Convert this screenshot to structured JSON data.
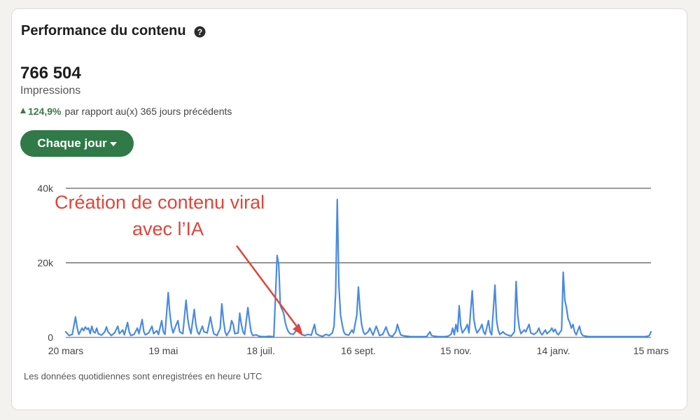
{
  "card": {
    "title": "Performance du contenu",
    "help_icon": "question-circle-icon",
    "metric_value": "766 504",
    "metric_label": "Impressions",
    "delta": {
      "direction": "up",
      "value": "124,9%",
      "text": "par rapport au(x) 365 jours précédents",
      "color": "#3c7a4c"
    },
    "period_button": {
      "label": "Chaque jour",
      "icon": "caret-down-icon",
      "color": "#2f7a47"
    },
    "footnote": "Les données quotidiennes sont enregistrées en heure UTC"
  },
  "annotation": {
    "line1": "Création de contenu viral",
    "line2": "avec l’IA",
    "color": "#e0453a"
  },
  "chart_data": {
    "type": "line",
    "title": "",
    "xlabel": "",
    "ylabel": "",
    "ylim": [
      0,
      40000
    ],
    "y_ticks": [
      {
        "value": 0,
        "label": "0"
      },
      {
        "value": 20000,
        "label": "20k"
      },
      {
        "value": 40000,
        "label": "40k"
      }
    ],
    "x_ticks": [
      {
        "day": 0,
        "label": "20 mars"
      },
      {
        "day": 60,
        "label": "19 mai"
      },
      {
        "day": 120,
        "label": "18 juil."
      },
      {
        "day": 180,
        "label": "16 sept."
      },
      {
        "day": 240,
        "label": "15 nov."
      },
      {
        "day": 300,
        "label": "14 janv."
      },
      {
        "day": 360,
        "label": "15 mars"
      }
    ],
    "grid": true,
    "line_color": "#4a8be0",
    "series": [
      {
        "name": "",
        "points": [
          [
            0,
            1500
          ],
          [
            2,
            500
          ],
          [
            4,
            800
          ],
          [
            6,
            5500
          ],
          [
            7,
            2500
          ],
          [
            8,
            800
          ],
          [
            10,
            2500
          ],
          [
            11,
            1800
          ],
          [
            12,
            2800
          ],
          [
            13,
            2200
          ],
          [
            14,
            2500
          ],
          [
            15,
            1000
          ],
          [
            16,
            3000
          ],
          [
            17,
            1500
          ],
          [
            18,
            1200
          ],
          [
            19,
            2500
          ],
          [
            20,
            1000
          ],
          [
            22,
            600
          ],
          [
            24,
            1500
          ],
          [
            25,
            2800
          ],
          [
            26,
            1500
          ],
          [
            28,
            500
          ],
          [
            30,
            1200
          ],
          [
            32,
            3000
          ],
          [
            33,
            1000
          ],
          [
            35,
            2000
          ],
          [
            36,
            700
          ],
          [
            38,
            4000
          ],
          [
            39,
            1500
          ],
          [
            40,
            500
          ],
          [
            42,
            800
          ],
          [
            44,
            2500
          ],
          [
            45,
            1000
          ],
          [
            47,
            4800
          ],
          [
            48,
            1500
          ],
          [
            49,
            700
          ],
          [
            51,
            1200
          ],
          [
            53,
            3000
          ],
          [
            54,
            1000
          ],
          [
            56,
            1800
          ],
          [
            57,
            800
          ],
          [
            59,
            4500
          ],
          [
            60,
            1500
          ],
          [
            61,
            800
          ],
          [
            63,
            12000
          ],
          [
            64,
            6500
          ],
          [
            65,
            3000
          ],
          [
            66,
            1200
          ],
          [
            68,
            3500
          ],
          [
            69,
            4500
          ],
          [
            70,
            1500
          ],
          [
            72,
            1000
          ],
          [
            74,
            10000
          ],
          [
            75,
            5000
          ],
          [
            76,
            2500
          ],
          [
            77,
            1000
          ],
          [
            79,
            7500
          ],
          [
            80,
            3500
          ],
          [
            81,
            1500
          ],
          [
            82,
            800
          ],
          [
            84,
            3000
          ],
          [
            85,
            1500
          ],
          [
            87,
            1200
          ],
          [
            89,
            5500
          ],
          [
            90,
            3000
          ],
          [
            91,
            1000
          ],
          [
            93,
            500
          ],
          [
            95,
            2500
          ],
          [
            96,
            9000
          ],
          [
            97,
            4500
          ],
          [
            98,
            1500
          ],
          [
            99,
            500
          ],
          [
            101,
            2000
          ],
          [
            102,
            4500
          ],
          [
            103,
            3500
          ],
          [
            104,
            1000
          ],
          [
            106,
            1200
          ],
          [
            107,
            6500
          ],
          [
            108,
            3500
          ],
          [
            109,
            1500
          ],
          [
            110,
            800
          ],
          [
            112,
            8000
          ],
          [
            113,
            4500
          ],
          [
            114,
            1500
          ],
          [
            115,
            500
          ],
          [
            117,
            700
          ],
          [
            119,
            300
          ],
          [
            121,
            200
          ],
          [
            123,
            200
          ],
          [
            125,
            300
          ],
          [
            127,
            200
          ],
          [
            128,
            300
          ],
          [
            130,
            22000
          ],
          [
            131,
            19500
          ],
          [
            132,
            8500
          ],
          [
            133,
            7500
          ],
          [
            134,
            6500
          ],
          [
            135,
            4000
          ],
          [
            136,
            2500
          ],
          [
            137,
            1500
          ],
          [
            138,
            1000
          ],
          [
            140,
            800
          ],
          [
            142,
            2000
          ],
          [
            143,
            3500
          ],
          [
            144,
            2000
          ],
          [
            145,
            800
          ],
          [
            147,
            500
          ],
          [
            149,
            800
          ],
          [
            151,
            600
          ],
          [
            153,
            3500
          ],
          [
            154,
            1000
          ],
          [
            156,
            500
          ],
          [
            158,
            300
          ],
          [
            160,
            800
          ],
          [
            162,
            500
          ],
          [
            164,
            1200
          ],
          [
            165,
            3000
          ],
          [
            166,
            12000
          ],
          [
            167,
            37000
          ],
          [
            168,
            14000
          ],
          [
            169,
            6000
          ],
          [
            170,
            3500
          ],
          [
            171,
            1500
          ],
          [
            172,
            800
          ],
          [
            174,
            600
          ],
          [
            176,
            2000
          ],
          [
            177,
            1200
          ],
          [
            179,
            6000
          ],
          [
            180,
            13500
          ],
          [
            181,
            7500
          ],
          [
            182,
            3500
          ],
          [
            183,
            1500
          ],
          [
            184,
            800
          ],
          [
            186,
            1500
          ],
          [
            187,
            2500
          ],
          [
            188,
            1500
          ],
          [
            189,
            600
          ],
          [
            191,
            3000
          ],
          [
            192,
            1800
          ],
          [
            193,
            500
          ],
          [
            195,
            800
          ],
          [
            197,
            2800
          ],
          [
            198,
            1500
          ],
          [
            199,
            500
          ],
          [
            201,
            300
          ],
          [
            203,
            1500
          ],
          [
            204,
            3500
          ],
          [
            205,
            2000
          ],
          [
            206,
            700
          ],
          [
            208,
            400
          ],
          [
            210,
            300
          ],
          [
            212,
            200
          ],
          [
            214,
            200
          ],
          [
            216,
            200
          ],
          [
            218,
            200
          ],
          [
            220,
            200
          ],
          [
            222,
            200
          ],
          [
            224,
            1500
          ],
          [
            225,
            500
          ],
          [
            227,
            300
          ],
          [
            229,
            200
          ],
          [
            231,
            200
          ],
          [
            233,
            200
          ],
          [
            235,
            300
          ],
          [
            237,
            800
          ],
          [
            238,
            2500
          ],
          [
            239,
            700
          ],
          [
            240,
            3500
          ],
          [
            241,
            1500
          ],
          [
            242,
            8500
          ],
          [
            243,
            3000
          ],
          [
            244,
            1200
          ],
          [
            246,
            2500
          ],
          [
            247,
            3500
          ],
          [
            248,
            1200
          ],
          [
            250,
            12500
          ],
          [
            251,
            5000
          ],
          [
            252,
            2500
          ],
          [
            253,
            1200
          ],
          [
            255,
            2500
          ],
          [
            256,
            3500
          ],
          [
            257,
            1500
          ],
          [
            258,
            800
          ],
          [
            260,
            4500
          ],
          [
            261,
            1500
          ],
          [
            262,
            700
          ],
          [
            264,
            14000
          ],
          [
            265,
            4500
          ],
          [
            266,
            2000
          ],
          [
            267,
            800
          ],
          [
            269,
            1500
          ],
          [
            270,
            1000
          ],
          [
            272,
            600
          ],
          [
            274,
            400
          ],
          [
            276,
            1500
          ],
          [
            277,
            15000
          ],
          [
            278,
            6000
          ],
          [
            279,
            2500
          ],
          [
            280,
            1000
          ],
          [
            282,
            2000
          ],
          [
            283,
            1500
          ],
          [
            285,
            3500
          ],
          [
            286,
            1200
          ],
          [
            288,
            800
          ],
          [
            290,
            1500
          ],
          [
            291,
            2500
          ],
          [
            292,
            1200
          ],
          [
            293,
            700
          ],
          [
            295,
            2000
          ],
          [
            296,
            1000
          ],
          [
            298,
            1800
          ],
          [
            299,
            2500
          ],
          [
            300,
            1500
          ],
          [
            301,
            2200
          ],
          [
            302,
            1200
          ],
          [
            303,
            700
          ],
          [
            305,
            2000
          ],
          [
            306,
            17500
          ],
          [
            307,
            10000
          ],
          [
            308,
            8000
          ],
          [
            309,
            5000
          ],
          [
            310,
            4000
          ],
          [
            311,
            2500
          ],
          [
            312,
            3500
          ],
          [
            313,
            1500
          ],
          [
            314,
            700
          ],
          [
            316,
            3000
          ],
          [
            317,
            1200
          ],
          [
            318,
            500
          ],
          [
            320,
            300
          ],
          [
            322,
            200
          ],
          [
            324,
            200
          ],
          [
            326,
            200
          ],
          [
            328,
            200
          ],
          [
            330,
            200
          ],
          [
            332,
            200
          ],
          [
            334,
            200
          ],
          [
            336,
            200
          ],
          [
            338,
            200
          ],
          [
            340,
            200
          ],
          [
            342,
            200
          ],
          [
            344,
            200
          ],
          [
            346,
            200
          ],
          [
            348,
            200
          ],
          [
            350,
            200
          ],
          [
            352,
            200
          ],
          [
            354,
            200
          ],
          [
            356,
            200
          ],
          [
            358,
            300
          ],
          [
            359,
            500
          ],
          [
            360,
            1500
          ]
        ]
      }
    ]
  }
}
